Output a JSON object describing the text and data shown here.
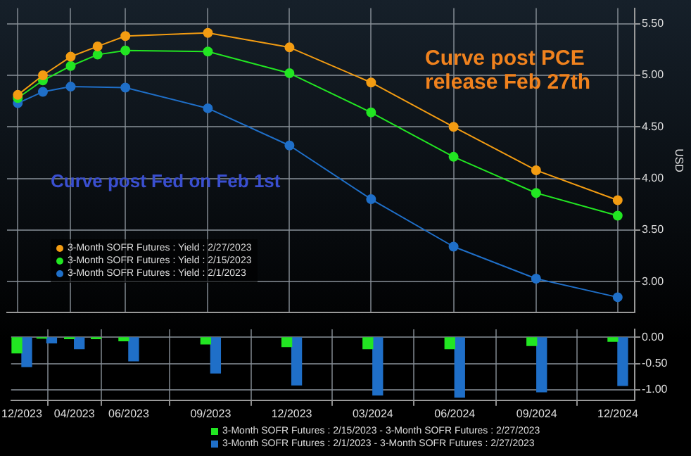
{
  "chart_data": [
    {
      "type": "line",
      "ylabel": "USD",
      "x": [
        "2023-02",
        "2023-03",
        "2023-04",
        "2023-05",
        "2023-06",
        "2023-09",
        "2023-12",
        "2024-03",
        "2024-06",
        "2024-09",
        "2024-12"
      ],
      "series": [
        {
          "name": "3-Month SOFR Futures : Yield : 2/27/2023",
          "color": "#f39c12",
          "values": [
            4.81,
            5.0,
            5.18,
            5.28,
            5.38,
            5.41,
            5.27,
            4.93,
            4.5,
            4.08,
            3.79
          ]
        },
        {
          "name": "3-Month SOFR Futures : Yield : 2/15/2023",
          "color": "#22e622",
          "values": [
            4.78,
            4.95,
            5.09,
            5.2,
            5.24,
            5.23,
            5.02,
            4.64,
            4.21,
            3.86,
            3.64
          ]
        },
        {
          "name": "3-Month SOFR Futures : Yield : 2/1/2023",
          "color": "#1f6fc8",
          "values": [
            4.73,
            4.84,
            4.89,
            null,
            4.88,
            4.68,
            4.32,
            3.8,
            3.34,
            3.03,
            2.85
          ]
        }
      ],
      "xlim": [
        "2023-01-20",
        "2024-12-20"
      ],
      "xticks": [
        {
          "value": "2023-02",
          "label": null
        },
        {
          "value": "2023-04",
          "label": null
        },
        {
          "value": "2023-06",
          "label": null
        },
        {
          "value": "2023-09",
          "label": null
        },
        {
          "value": "2023-12",
          "label": null
        },
        {
          "value": "2024-03",
          "label": null
        },
        {
          "value": "2024-06",
          "label": null
        },
        {
          "value": "2024-09",
          "label": null
        },
        {
          "value": "2024-12",
          "label": null
        }
      ],
      "ylim": [
        2.7,
        5.65
      ],
      "yticks": [
        {
          "value": 3.0,
          "label": "3.00"
        },
        {
          "value": 3.5,
          "label": "3.50"
        },
        {
          "value": 4.0,
          "label": "4.00"
        },
        {
          "value": 4.5,
          "label": "4.50"
        },
        {
          "value": 5.0,
          "label": "5.00"
        },
        {
          "value": 5.5,
          "label": "5.50"
        }
      ],
      "annotations": [
        "Curve post PCE release Feb 27th",
        "Curve post Fed on Feb 1st"
      ],
      "grid": true,
      "legend": "left",
      "marker": "circle",
      "line_style": "solid",
      "tick_labels": "y"
    },
    {
      "type": "bar",
      "x": [
        "2023-02",
        "2023-03",
        "2023-04",
        "2023-05",
        "2023-06",
        "2023-09",
        "2023-12",
        "2024-03",
        "2024-06",
        "2024-09",
        "2024-12"
      ],
      "series": [
        {
          "name": "3-Month SOFR Futures : 2/15/2023 - 3-Month SOFR Futures : 2/27/2023",
          "color": "#22e622",
          "values": [
            -0.3,
            -0.02,
            -0.03,
            -0.03,
            -0.07,
            -0.13,
            -0.18,
            -0.22,
            -0.22,
            -0.16,
            -0.08
          ]
        },
        {
          "name": "3-Month SOFR Futures : 2/1/2023 - 3-Month SOFR Futures : 2/27/2023",
          "color": "#1f6fc8",
          "values": [
            -0.56,
            -0.11,
            -0.22,
            null,
            -0.45,
            -0.68,
            -0.91,
            -1.1,
            -1.14,
            -1.04,
            -0.92
          ]
        }
      ],
      "xlim": [
        "2023-01-20",
        "2024-12-20"
      ],
      "xticks": [
        {
          "value": "2023-02",
          "label": "12/2023"
        },
        {
          "value": "2023-04",
          "label": "04/2023"
        },
        {
          "value": "2023-06",
          "label": "06/2023"
        },
        {
          "value": "2023-09",
          "label": "09/2023"
        },
        {
          "value": "2023-12",
          "label": "12/2023"
        },
        {
          "value": "2024-03",
          "label": "03/2024"
        },
        {
          "value": "2024-06",
          "label": "06/2024"
        },
        {
          "value": "2024-09",
          "label": "09/2024"
        },
        {
          "value": "2024-12",
          "label": "12/2024"
        }
      ],
      "ylim": [
        -1.2,
        0.15
      ],
      "yticks": [
        {
          "value": -1.0,
          "label": "-1.00"
        },
        {
          "value": -0.5,
          "label": "-0.50"
        },
        {
          "value": 0.0,
          "label": "0.00"
        }
      ],
      "grid": true,
      "legend": "bottom"
    }
  ]
}
